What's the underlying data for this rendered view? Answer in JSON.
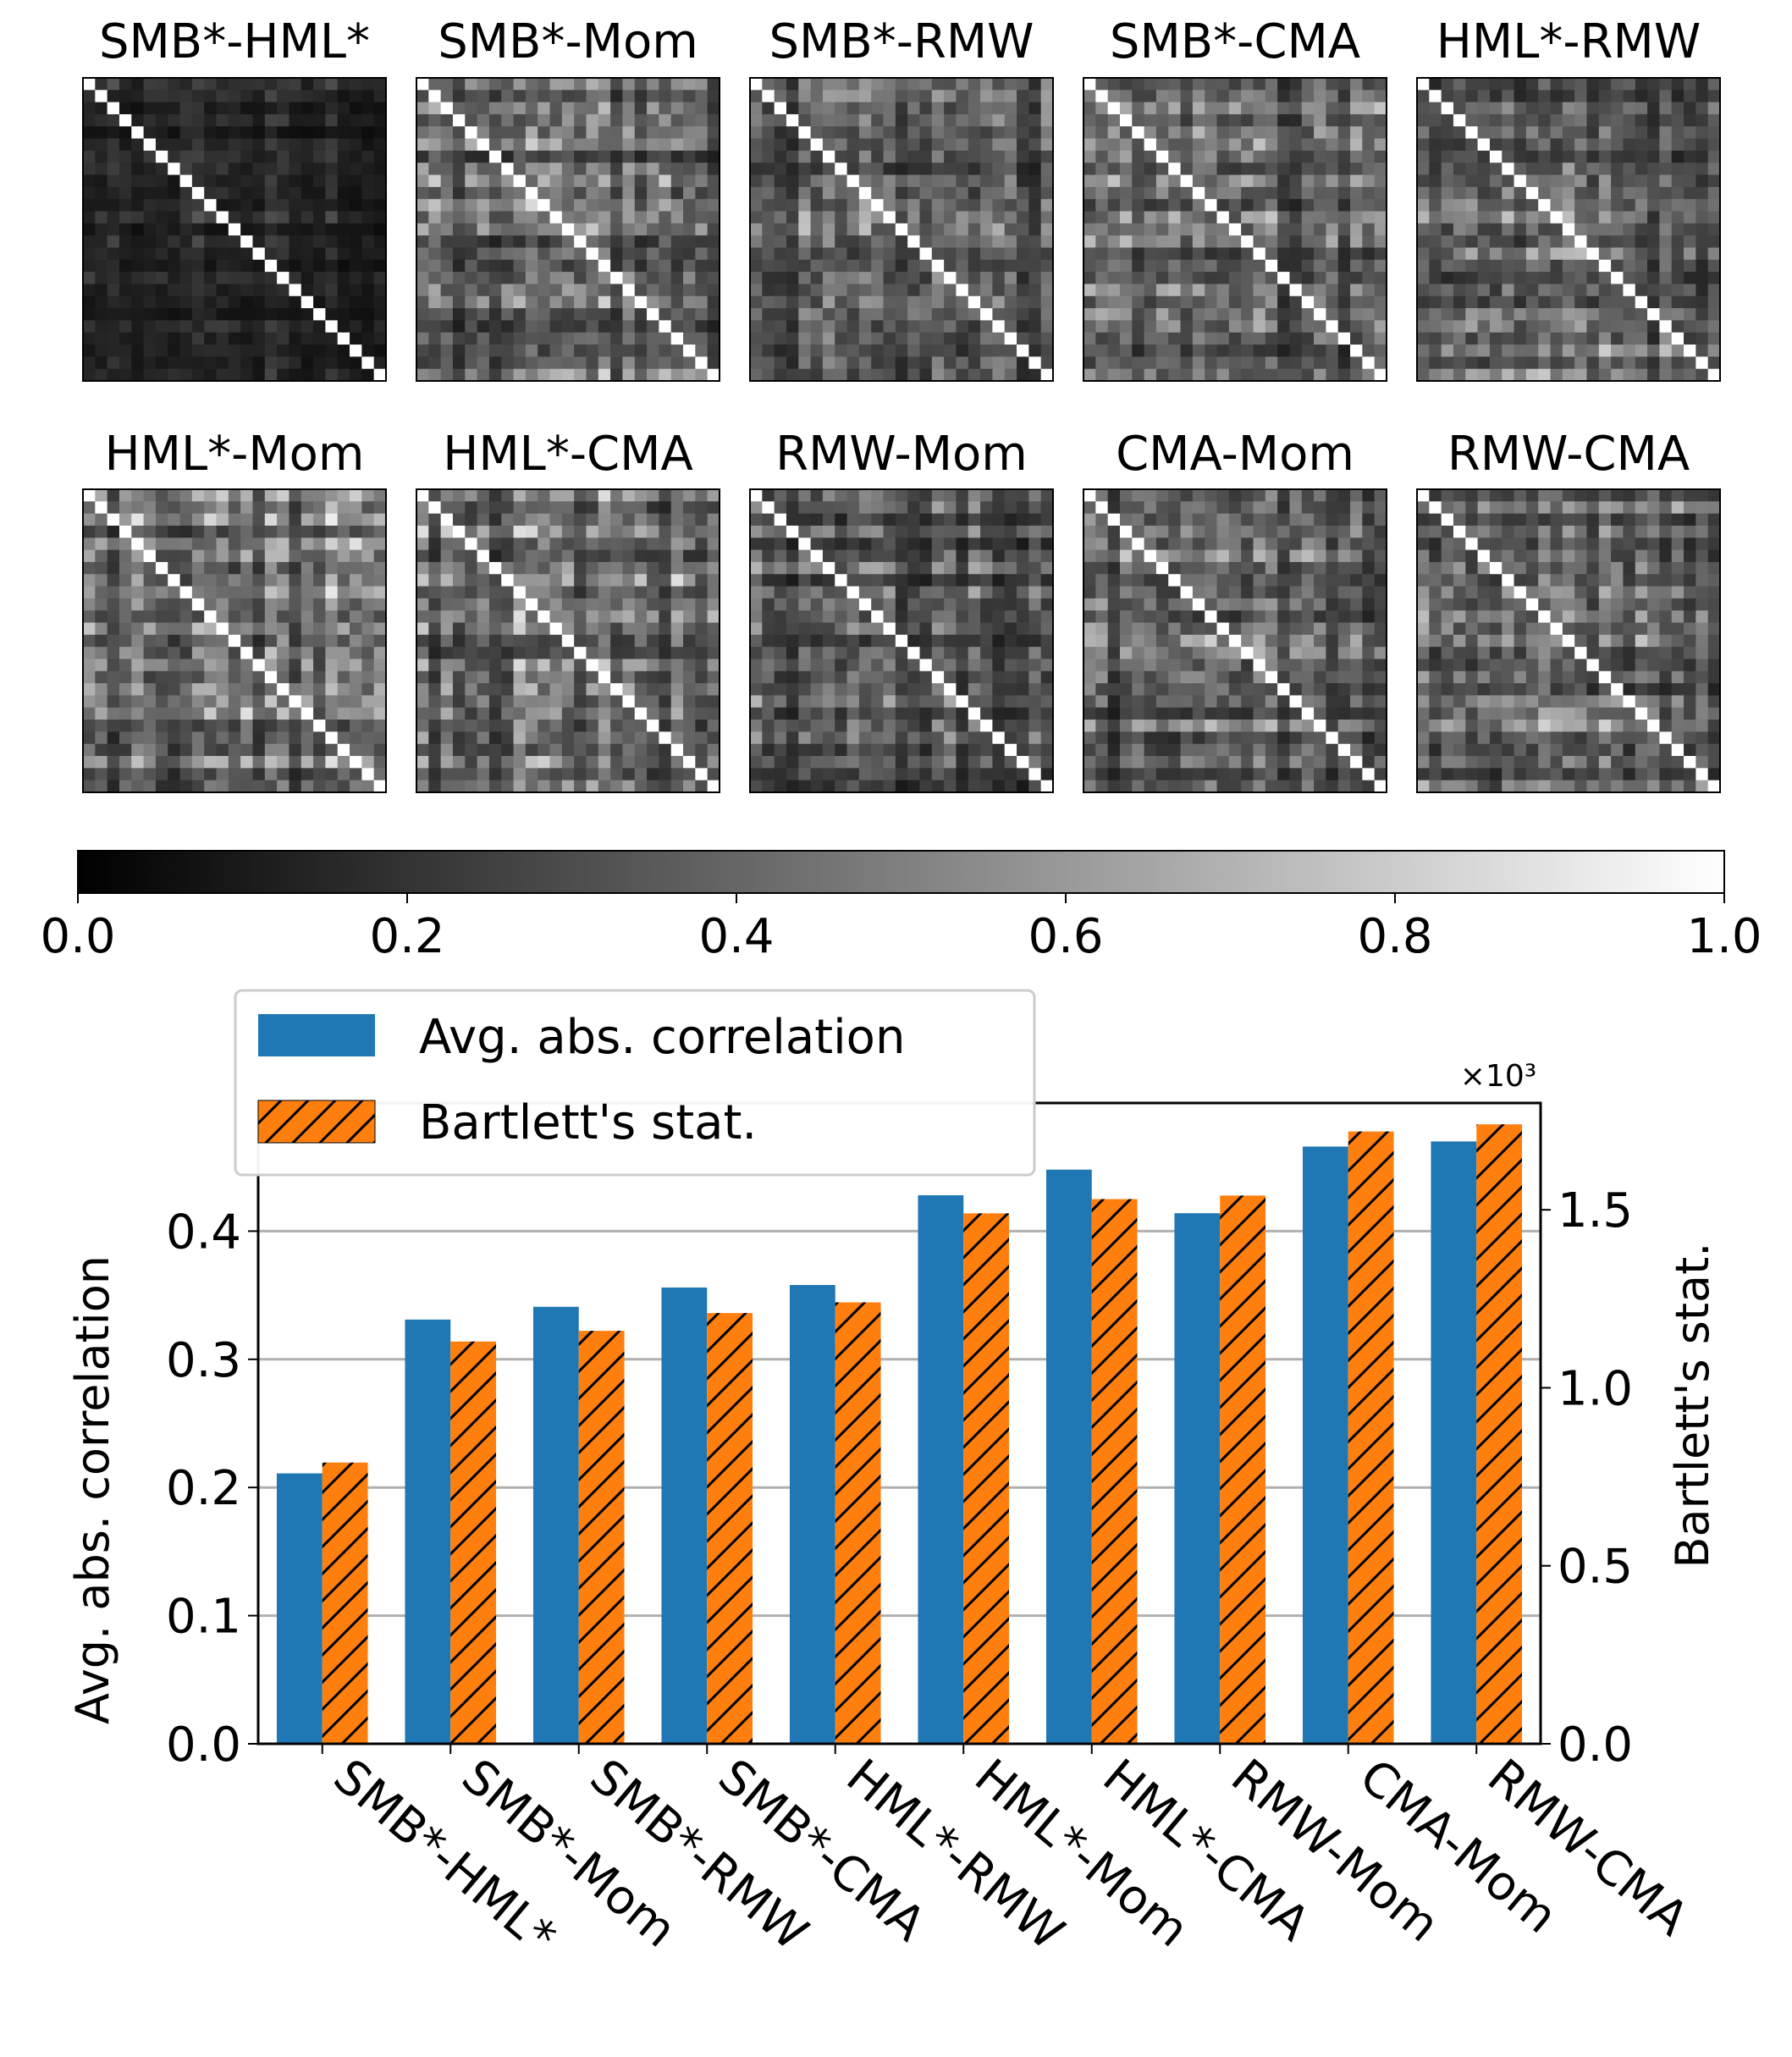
{
  "heatmaps": {
    "titles": [
      "SMB*-HML*",
      "SMB*-Mom",
      "SMB*-RMW",
      "SMB*-CMA",
      "HML*-RMW",
      "HML*-Mom",
      "HML*-CMA",
      "RMW-Mom",
      "CMA-Mom",
      "RMW-CMA"
    ],
    "matrix_size": 25
  },
  "colorbar": {
    "ticks": [
      "0.0",
      "0.2",
      "0.4",
      "0.6",
      "0.8",
      "1.0"
    ],
    "range": [
      0,
      1
    ],
    "colormap": "gray"
  },
  "chart_data": {
    "type": "bar",
    "categories": [
      "SMB*-HML*",
      "SMB*-Mom",
      "SMB*-RMW",
      "SMB*-CMA",
      "HML*-RMW",
      "HML*-Mom",
      "HML*-CMA",
      "RMW-Mom",
      "CMA-Mom",
      "RMW-CMA"
    ],
    "series": [
      {
        "name": "Avg. abs. correlation",
        "axis": "left",
        "color": "#1f77b4",
        "values": [
          0.211,
          0.331,
          0.341,
          0.356,
          0.358,
          0.428,
          0.448,
          0.414,
          0.466,
          0.47
        ]
      },
      {
        "name": "Bartlett's stat.",
        "axis": "right",
        "color": "#ff7f0e",
        "hatch": "//",
        "values": [
          0.79,
          1.13,
          1.16,
          1.21,
          1.24,
          1.49,
          1.53,
          1.54,
          1.72,
          1.74
        ]
      }
    ],
    "ylabel_left": "Avg. abs. correlation",
    "ylabel_right": "Bartlett's stat.",
    "right_axis_multiplier": "×10³",
    "ylim_left": [
      0,
      0.5
    ],
    "ylim_right": [
      0,
      1.8
    ],
    "yticks_left": [
      "0.0",
      "0.1",
      "0.2",
      "0.3",
      "0.4"
    ],
    "yticks_right": [
      "0.0",
      "0.5",
      "1.0",
      "1.5"
    ],
    "grid": "horizontal",
    "legend_position": "upper-left, above plot"
  }
}
